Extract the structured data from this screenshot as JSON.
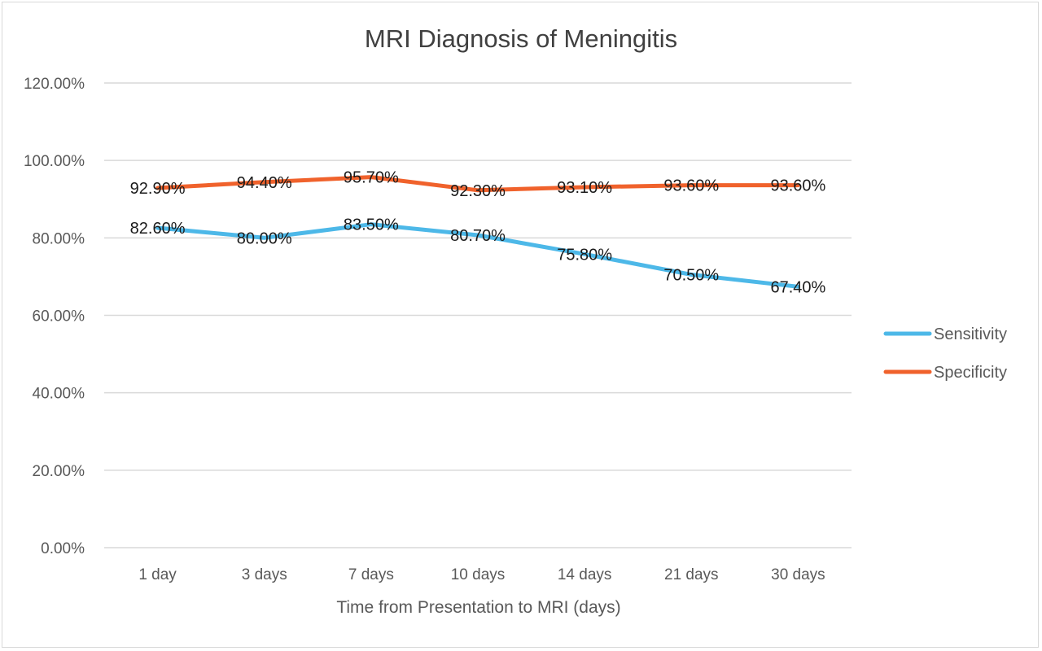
{
  "chart_data": {
    "type": "line",
    "title": "MRI Diagnosis of Meningitis",
    "xlabel": "Time from Presentation to MRI (days)",
    "ylabel": "",
    "categories": [
      "1 day",
      "3 days",
      "7 days",
      "10 days",
      "14 days",
      "21 days",
      "30 days"
    ],
    "ylim": [
      0,
      120
    ],
    "yticks": [
      0,
      20,
      40,
      60,
      80,
      100,
      120
    ],
    "ytick_labels": [
      "0.00%",
      "20.00%",
      "40.00%",
      "60.00%",
      "80.00%",
      "100.00%",
      "120.00%"
    ],
    "grid": true,
    "legend_position": "right",
    "series": [
      {
        "name": "Sensitivity",
        "color": "#4db8e8",
        "values": [
          82.6,
          80.0,
          83.5,
          80.7,
          75.8,
          70.5,
          67.4
        ],
        "labels": [
          "82.60%",
          "80.00%",
          "83.50%",
          "80.70%",
          "75.80%",
          "70.50%",
          "67.40%"
        ]
      },
      {
        "name": "Specificity",
        "color": "#f0622c",
        "values": [
          92.9,
          94.4,
          95.7,
          92.3,
          93.1,
          93.6,
          93.6
        ],
        "labels": [
          "92.90%",
          "94.40%",
          "95.70%",
          "92.30%",
          "93.10%",
          "93.60%",
          "93.60%"
        ]
      }
    ]
  }
}
